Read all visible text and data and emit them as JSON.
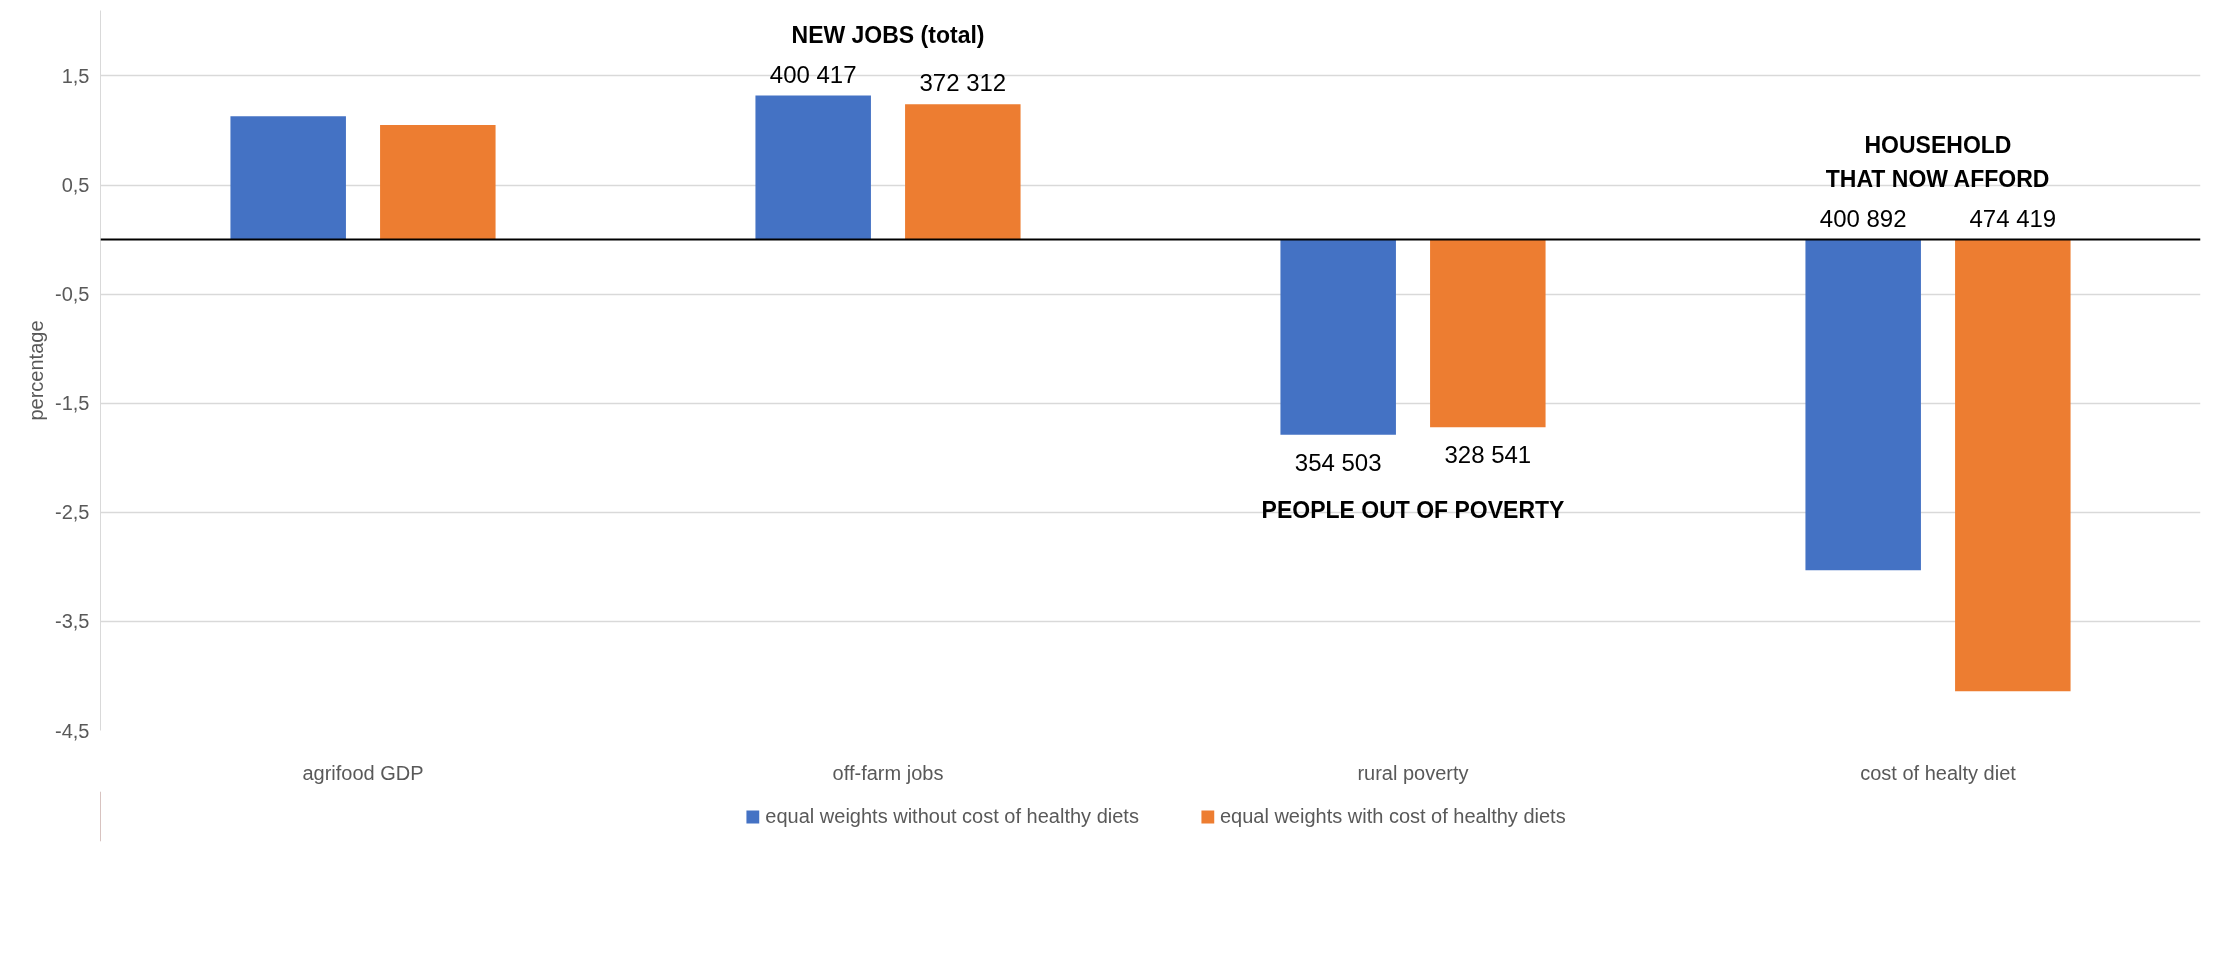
{
  "chart_data": {
    "type": "bar",
    "ylabel": "percentage",
    "categories": [
      "agrifood GDP",
      "off-farm jobs",
      "rural poverty",
      "cost of healty diet"
    ],
    "series": [
      {
        "name": "equal weights without cost of healthy diets",
        "color": "#4472c4",
        "values": [
          1.13,
          1.32,
          -1.79,
          -3.03
        ]
      },
      {
        "name": "equal weights with cost of healthy diets",
        "color": "#ed7d31",
        "values": [
          1.05,
          1.24,
          -1.72,
          -4.14
        ]
      }
    ],
    "annotations": [
      "400 417",
      "372 312",
      "NEW JOBS (total)",
      "354 503",
      "328 541",
      "PEOPLE OUT OF POVERTY",
      "400 892",
      "474 419",
      "HOUSEHOLD\nTHAT NOW AFFORD"
    ],
    "ref_lines": [
      {
        "axis": "y",
        "value": 0,
        "color": "#000000"
      }
    ],
    "ylim": [
      -4.5,
      2.1
    ],
    "yticks": [
      {
        "value": 1.5,
        "label": "1,5"
      },
      {
        "value": 0.5,
        "label": "0,5"
      },
      {
        "value": -0.5,
        "label": "-0,5"
      },
      {
        "value": -1.5,
        "label": "-1,5"
      },
      {
        "value": -2.5,
        "label": "-2,5"
      },
      {
        "value": -3.5,
        "label": "-3,5"
      },
      {
        "value": -4.5,
        "label": "-4,5"
      }
    ],
    "grid": "y",
    "legend": "bottom"
  }
}
